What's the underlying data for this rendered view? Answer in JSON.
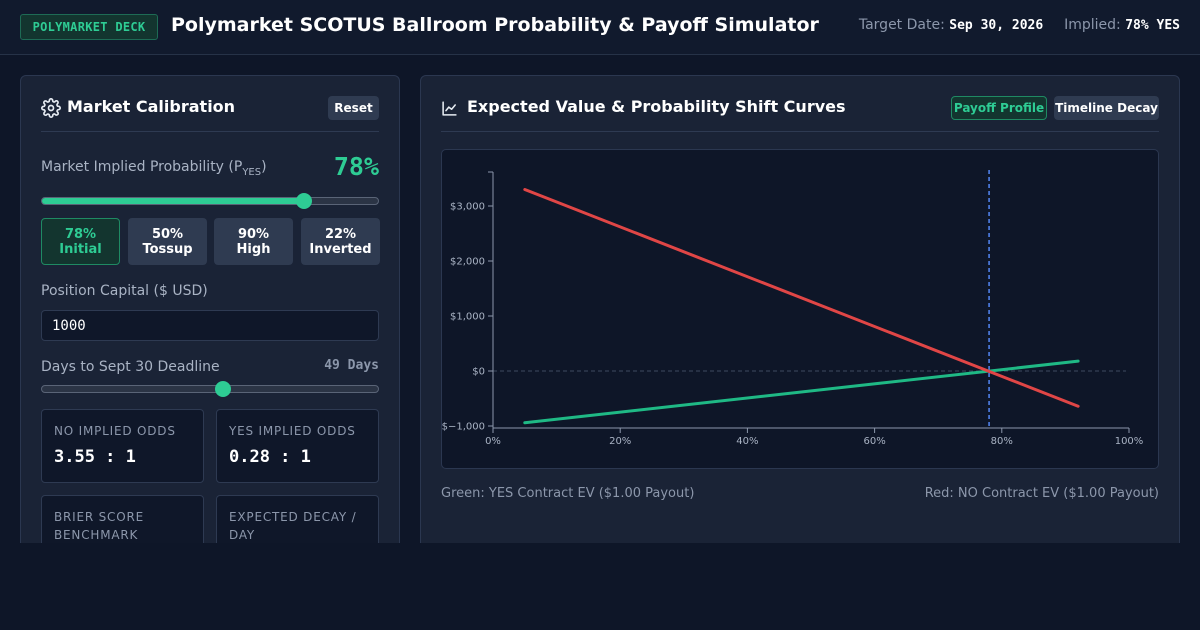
{
  "header": {
    "badge": "POLYMARKET DECK",
    "title": "Polymarket SCOTUS Ballroom Probability & Payoff Simulator",
    "target_date_label": "Target Date:",
    "target_date_value": "Sep 30, 2026",
    "implied_label": "Implied:",
    "implied_value": "78% YES"
  },
  "calibration": {
    "title": "Market Calibration",
    "icon": "gear-icon",
    "reset_label": "Reset",
    "prob_label_main": "Market Implied Probability (P",
    "prob_label_sub": "YES",
    "prob_label_end": ")",
    "prob_value_text": "78%",
    "prob_value": 78,
    "presets": [
      {
        "pct": "78%",
        "name": "Initial",
        "active": true
      },
      {
        "pct": "50%",
        "name": "Tossup",
        "active": false
      },
      {
        "pct": "90%",
        "name": "High",
        "active": false
      },
      {
        "pct": "22%",
        "name": "Inverted",
        "active": false
      }
    ],
    "capital_label": "Position Capital ($ USD)",
    "capital_value": "1000",
    "days_label": "Days to Sept 30 Deadline",
    "days_value_text": "49 Days",
    "days_fraction": 0.54,
    "stats": [
      {
        "label": "NO IMPLIED ODDS",
        "value": "3.55 : 1"
      },
      {
        "label": "YES IMPLIED ODDS",
        "value": "0.28 : 1"
      },
      {
        "label": "BRIER SCORE BENCHMARK",
        "value": ""
      },
      {
        "label": "EXPECTED DECAY / DAY",
        "value": ""
      }
    ]
  },
  "curves": {
    "title": "Expected Value & Probability Shift Curves",
    "icon": "line-chart-icon",
    "tab_payoff": "Payoff Profile",
    "tab_timeline": "Timeline Decay",
    "legend_green": "Green: YES Contract EV ($1.00 Payout)",
    "legend_red": "Red: NO Contract EV ($1.00 Payout)"
  },
  "colors": {
    "accent": "#2ecc94",
    "yes_series": "#1fb985",
    "no_series": "#e04646",
    "marker": "#4f7fe8"
  },
  "chart_data": {
    "type": "line",
    "x_ticks": [
      "0%",
      "20%",
      "40%",
      "60%",
      "80%",
      "100%"
    ],
    "y_ticks": [
      "$−1,000",
      "$0",
      "$1,000",
      "$2,000",
      "$3,000"
    ],
    "xlim": [
      0,
      100
    ],
    "ylim": [
      -1000,
      3000
    ],
    "marker_x": 78,
    "series": [
      {
        "color": "#1fb985",
        "x": [
          5,
          92
        ],
        "y": [
          -941,
          179
        ]
      },
      {
        "color": "#e04646",
        "x": [
          5,
          92
        ],
        "y": [
          3300,
          -641
        ]
      }
    ]
  }
}
